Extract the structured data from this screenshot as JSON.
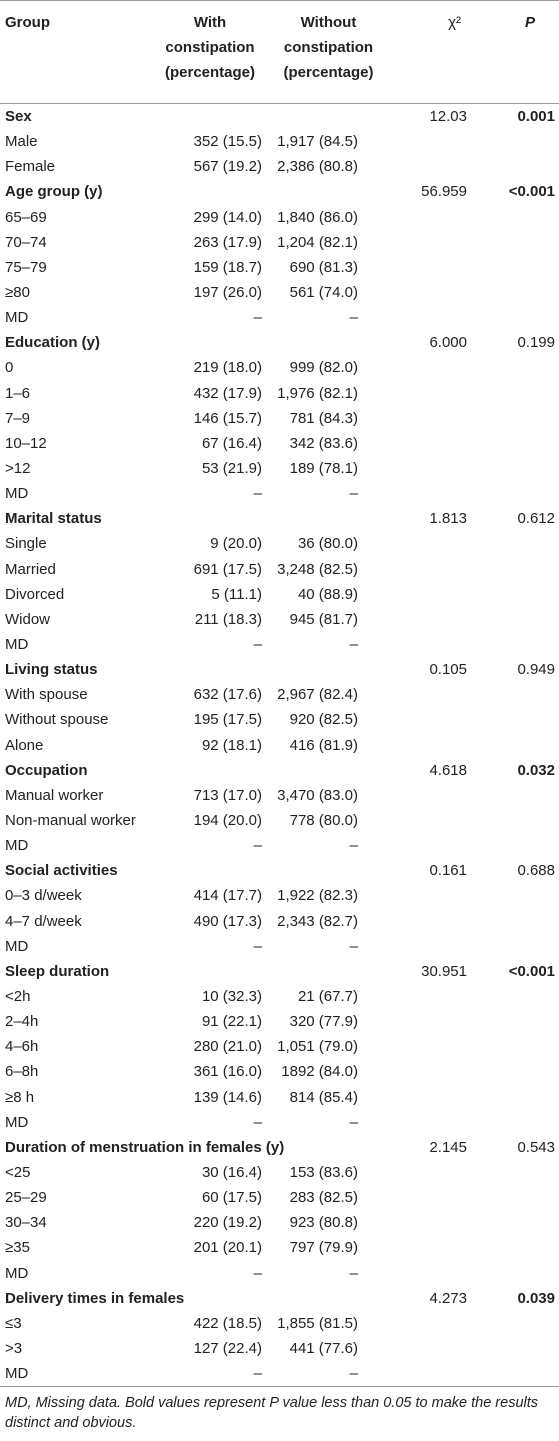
{
  "table": {
    "header": [
      "Group",
      "With constipation (percentage)",
      "Without constipation (percentage)",
      "χ²",
      "P"
    ],
    "groups": [
      {
        "label": "Sex",
        "chi2": "12.03",
        "p": "0.001",
        "p_bold": true,
        "rows": [
          [
            "Male",
            "352 (15.5)",
            "1,917 (84.5)"
          ],
          [
            "Female",
            "567 (19.2)",
            "2,386 (80.8)"
          ]
        ]
      },
      {
        "label": "Age group (y)",
        "chi2": "56.959",
        "p": "<0.001",
        "p_bold": true,
        "rows": [
          [
            "65–69",
            "299 (14.0)",
            "1,840 (86.0)"
          ],
          [
            "70–74",
            "263 (17.9)",
            "1,204 (82.1)"
          ],
          [
            "75–79",
            "159 (18.7)",
            "690 (81.3)"
          ],
          [
            "≥80",
            "197 (26.0)",
            "561 (74.0)"
          ],
          [
            "MD",
            "–",
            "–"
          ]
        ]
      },
      {
        "label": "Education (y)",
        "chi2": "6.000",
        "p": "0.199",
        "p_bold": false,
        "rows": [
          [
            "0",
            "219 (18.0)",
            "999 (82.0)"
          ],
          [
            "1–6",
            "432 (17.9)",
            "1,976 (82.1)"
          ],
          [
            "7–9",
            "146 (15.7)",
            "781 (84.3)"
          ],
          [
            "10–12",
            "67 (16.4)",
            "342 (83.6)"
          ],
          [
            ">12",
            "53 (21.9)",
            "189 (78.1)"
          ],
          [
            "MD",
            "–",
            "–"
          ]
        ]
      },
      {
        "label": "Marital status",
        "chi2": "1.813",
        "p": "0.612",
        "p_bold": false,
        "rows": [
          [
            "Single",
            "9 (20.0)",
            "36 (80.0)"
          ],
          [
            "Married",
            "691 (17.5)",
            "3,248 (82.5)"
          ],
          [
            "Divorced",
            "5 (11.1)",
            "40 (88.9)"
          ],
          [
            "Widow",
            "211 (18.3)",
            "945 (81.7)"
          ],
          [
            "MD",
            "–",
            "–"
          ]
        ]
      },
      {
        "label": "Living status",
        "chi2": "0.105",
        "p": "0.949",
        "p_bold": false,
        "rows": [
          [
            "With spouse",
            "632 (17.6)",
            "2,967 (82.4)"
          ],
          [
            "Without spouse",
            "195 (17.5)",
            "920 (82.5)"
          ],
          [
            "Alone",
            "92 (18.1)",
            "416 (81.9)"
          ]
        ]
      },
      {
        "label": "Occupation",
        "chi2": "4.618",
        "p": "0.032",
        "p_bold": true,
        "rows": [
          [
            "Manual worker",
            "713 (17.0)",
            "3,470 (83.0)"
          ],
          [
            "Non-manual worker",
            "194 (20.0)",
            "778 (80.0)"
          ],
          [
            "MD",
            "–",
            "–"
          ]
        ]
      },
      {
        "label": "Social activities",
        "chi2": "0.161",
        "p": "0.688",
        "p_bold": false,
        "rows": [
          [
            "0–3 d/week",
            "414 (17.7)",
            "1,922 (82.3)"
          ],
          [
            "4–7 d/week",
            "490 (17.3)",
            "2,343 (82.7)"
          ],
          [
            "MD",
            "–",
            "–"
          ]
        ]
      },
      {
        "label": "Sleep duration",
        "chi2": "30.951",
        "p": "<0.001",
        "p_bold": true,
        "rows": [
          [
            "<2h",
            "10 (32.3)",
            "21 (67.7)"
          ],
          [
            "2–4h",
            "91 (22.1)",
            "320 (77.9)"
          ],
          [
            "4–6h",
            "280 (21.0)",
            "1,051 (79.0)"
          ],
          [
            "6–8h",
            "361 (16.0)",
            "1892 (84.0)"
          ],
          [
            "≥8 h",
            "139 (14.6)",
            "814 (85.4)"
          ],
          [
            "MD",
            "–",
            "–"
          ]
        ]
      },
      {
        "label": "Duration of menstruation in females (y)",
        "chi2": "2.145",
        "p": "0.543",
        "p_bold": false,
        "rows": [
          [
            "<25",
            "30 (16.4)",
            "153 (83.6)"
          ],
          [
            "25–29",
            "60 (17.5)",
            "283 (82.5)"
          ],
          [
            "30–34",
            "220 (19.2)",
            "923 (80.8)"
          ],
          [
            "≥35",
            "201 (20.1)",
            "797 (79.9)"
          ],
          [
            "MD",
            "–",
            "–"
          ]
        ]
      },
      {
        "label": "Delivery times in females",
        "chi2": "4.273",
        "p": "0.039",
        "p_bold": true,
        "rows": [
          [
            "≤3",
            "422 (18.5)",
            "1,855 (81.5)"
          ],
          [
            ">3",
            "127 (22.4)",
            "441 (77.6)"
          ],
          [
            "MD",
            "–",
            "–"
          ]
        ]
      }
    ],
    "footnote": "MD, Missing data. Bold values represent P value less than 0.05 to make the results distinct and obvious."
  }
}
